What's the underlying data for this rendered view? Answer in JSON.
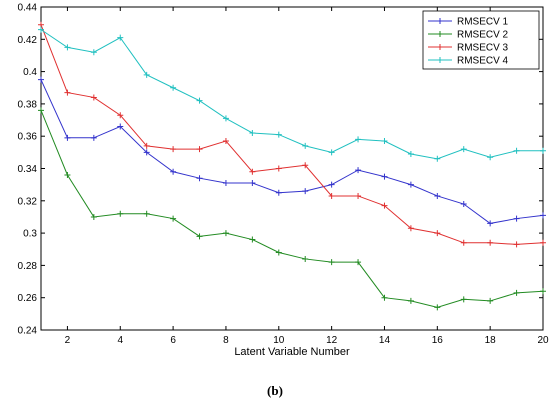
{
  "caption": "(b)",
  "chart_data": {
    "type": "line",
    "title": "",
    "xlabel": "Latent Variable Number",
    "ylabel": "",
    "xlim": [
      1,
      20
    ],
    "ylim": [
      0.24,
      0.44
    ],
    "xticks": [
      2,
      4,
      6,
      8,
      10,
      12,
      14,
      16,
      18,
      20
    ],
    "xtick_labels": [
      "2",
      "4",
      "6",
      "8",
      "10",
      "12",
      "14",
      "16",
      "18",
      "20"
    ],
    "yticks": [
      0.24,
      0.26,
      0.28,
      0.3,
      0.32,
      0.34,
      0.36,
      0.38,
      0.4,
      0.42,
      0.44
    ],
    "ytick_labels": [
      "0.24",
      "0.26",
      "0.28",
      "0.3",
      "0.32",
      "0.34",
      "0.36",
      "0.38",
      "0.4",
      "0.42",
      "0.44"
    ],
    "grid": false,
    "legend_position": "top-right",
    "x": [
      1,
      2,
      3,
      4,
      5,
      6,
      7,
      8,
      9,
      10,
      11,
      12,
      13,
      14,
      15,
      16,
      17,
      18,
      19,
      20
    ],
    "series": [
      {
        "name": "RMSECV 1",
        "color": "#3333cc",
        "values": [
          0.395,
          0.359,
          0.359,
          0.366,
          0.35,
          0.338,
          0.334,
          0.331,
          0.331,
          0.325,
          0.326,
          0.33,
          0.339,
          0.335,
          0.33,
          0.323,
          0.318,
          0.306,
          0.309,
          0.311
        ]
      },
      {
        "name": "RMSECV 2",
        "color": "#228b22",
        "values": [
          0.376,
          0.336,
          0.31,
          0.312,
          0.312,
          0.309,
          0.298,
          0.3,
          0.296,
          0.288,
          0.284,
          0.282,
          0.282,
          0.26,
          0.258,
          0.254,
          0.259,
          0.258,
          0.263,
          0.264
        ]
      },
      {
        "name": "RMSECV 3",
        "color": "#e03030",
        "values": [
          0.429,
          0.387,
          0.384,
          0.373,
          0.354,
          0.352,
          0.352,
          0.357,
          0.338,
          0.34,
          0.342,
          0.323,
          0.323,
          0.317,
          0.303,
          0.3,
          0.294,
          0.294,
          0.293,
          0.294
        ]
      },
      {
        "name": "RMSECV 4",
        "color": "#20c0c0",
        "values": [
          0.426,
          0.415,
          0.412,
          0.421,
          0.398,
          0.39,
          0.382,
          0.371,
          0.362,
          0.361,
          0.354,
          0.35,
          0.358,
          0.357,
          0.349,
          0.346,
          0.352,
          0.347,
          0.351,
          0.351
        ]
      }
    ]
  }
}
